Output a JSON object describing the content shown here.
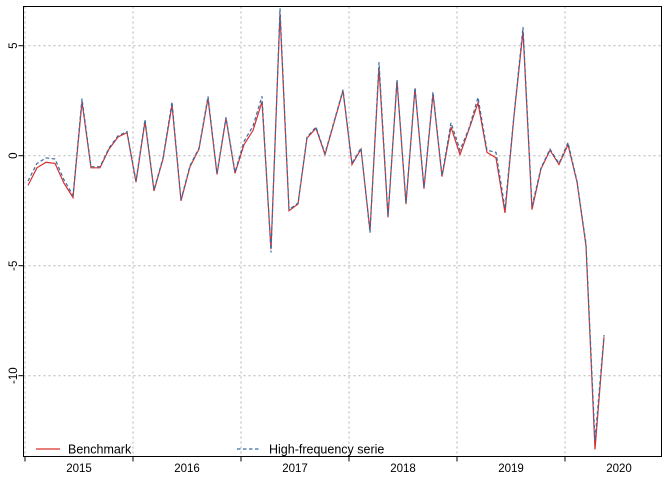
{
  "chart_data": {
    "type": "line",
    "title": "",
    "xlabel": "",
    "ylabel": "",
    "frequency": "monthly",
    "x_start": "2015-01",
    "x_end": "2020-05",
    "x_tick_years": [
      "2015",
      "2016",
      "2017",
      "2018",
      "2019",
      "2020"
    ],
    "y_ticks": [
      5,
      0,
      -5,
      -10
    ],
    "ylim": [
      -13.8,
      6.9
    ],
    "grid": {
      "style": "dotted",
      "color": "#b3b3b3",
      "horizontal": true,
      "vertical": true
    },
    "legend_position": "bottom-left-inside-horizontal",
    "series": [
      {
        "name": "Benchmark",
        "color": "#d6302f",
        "line_style": "solid",
        "values": [
          -1.35,
          -0.55,
          -0.3,
          -0.35,
          -1.25,
          -1.9,
          2.45,
          -0.55,
          -0.55,
          0.3,
          0.85,
          1.05,
          -1.2,
          1.55,
          -1.6,
          -0.15,
          2.3,
          -2.05,
          -0.5,
          0.3,
          2.6,
          -0.85,
          1.7,
          -0.8,
          0.5,
          1.15,
          2.45,
          -4.25,
          6.45,
          -2.5,
          -2.2,
          0.8,
          1.25,
          0.05,
          1.5,
          2.95,
          -0.4,
          0.3,
          -3.4,
          4.0,
          -2.8,
          3.4,
          -2.2,
          3.05,
          -1.5,
          2.8,
          -0.95,
          1.3,
          0.05,
          1.2,
          2.4,
          0.15,
          -0.1,
          -2.6,
          1.8,
          5.65,
          -2.45,
          -0.6,
          0.25,
          -0.4,
          0.5,
          -1.2,
          -4.1,
          -13.35,
          -8.25
        ]
      },
      {
        "name": "High-frequency serie",
        "color": "#3a6ca3",
        "line_style": "dashed",
        "values": [
          -1.15,
          -0.35,
          -0.1,
          -0.15,
          -1.1,
          -1.8,
          2.6,
          -0.5,
          -0.5,
          0.35,
          0.9,
          1.1,
          -1.15,
          1.65,
          -1.55,
          -0.1,
          2.45,
          -2.0,
          -0.45,
          0.35,
          2.7,
          -0.8,
          1.75,
          -0.75,
          0.65,
          1.35,
          2.7,
          -4.4,
          6.7,
          -2.45,
          -2.15,
          0.85,
          1.3,
          0.1,
          1.55,
          3.0,
          -0.35,
          0.35,
          -3.5,
          4.25,
          -2.75,
          3.45,
          -2.15,
          3.1,
          -1.45,
          2.9,
          -0.9,
          1.5,
          0.25,
          1.25,
          2.65,
          0.25,
          0.15,
          -2.4,
          1.85,
          5.85,
          -2.3,
          -0.55,
          0.3,
          -0.35,
          0.6,
          -1.15,
          -4.0,
          -12.95,
          -8.15
        ]
      }
    ]
  }
}
